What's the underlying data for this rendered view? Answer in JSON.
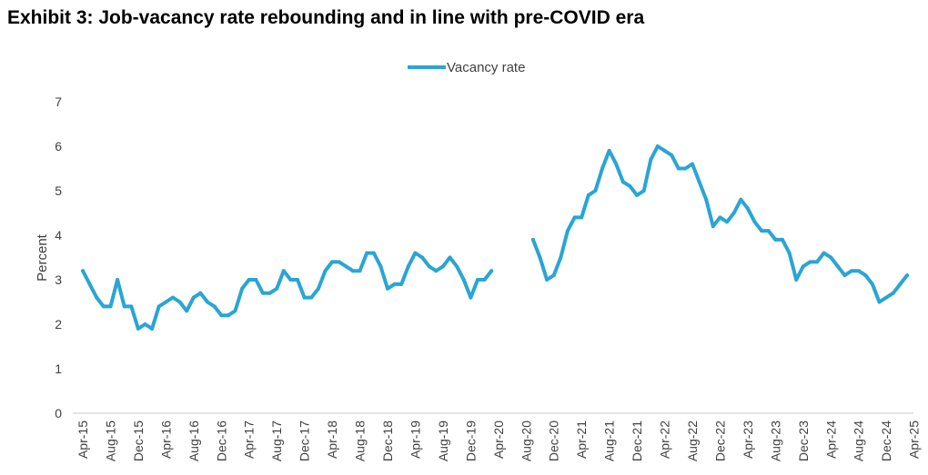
{
  "title": "Exhibit 3: Job-vacancy rate rebounding and in line with pre-COVID era",
  "colors": {
    "series": "#2aa5d4",
    "axis": "#c8c8c8",
    "text": "#404040"
  },
  "chart_data": {
    "type": "line",
    "title": "Exhibit 3: Job-vacancy rate rebounding and in line with pre-COVID era",
    "ylabel": "Percent",
    "xlabel": "",
    "ylim": [
      0,
      7
    ],
    "yticks": [
      0,
      1,
      2,
      3,
      4,
      5,
      6,
      7
    ],
    "grid": false,
    "legend": "top-center",
    "x_tick_labels": [
      "Apr-15",
      "Aug-15",
      "Dec-15",
      "Apr-16",
      "Aug-16",
      "Dec-16",
      "Apr-17",
      "Aug-17",
      "Dec-17",
      "Apr-18",
      "Aug-18",
      "Dec-18",
      "Apr-19",
      "Aug-19",
      "Dec-19",
      "Apr-20",
      "Aug-20",
      "Dec-20",
      "Apr-21",
      "Aug-21",
      "Dec-21",
      "Apr-22",
      "Aug-22",
      "Dec-22",
      "Apr-23",
      "Aug-23",
      "Dec-23",
      "Apr-24",
      "Aug-24",
      "Dec-24",
      "Apr-25"
    ],
    "x_start": "Apr-15",
    "x_end": "Apr-25",
    "series": [
      {
        "name": "Vacancy rate",
        "color": "#2aa5d4",
        "values": [
          3.2,
          2.9,
          2.6,
          2.4,
          2.4,
          3.0,
          2.4,
          2.4,
          1.9,
          2.0,
          1.9,
          2.4,
          2.5,
          2.6,
          2.5,
          2.3,
          2.6,
          2.7,
          2.5,
          2.4,
          2.2,
          2.2,
          2.3,
          2.8,
          3.0,
          3.0,
          2.7,
          2.7,
          2.8,
          3.2,
          3.0,
          3.0,
          2.6,
          2.6,
          2.8,
          3.2,
          3.4,
          3.4,
          3.3,
          3.2,
          3.2,
          3.6,
          3.6,
          3.3,
          2.8,
          2.9,
          2.9,
          3.3,
          3.6,
          3.5,
          3.3,
          3.2,
          3.3,
          3.5,
          3.3,
          3.0,
          2.6,
          3.0,
          3.0,
          3.2,
          null,
          null,
          null,
          null,
          null,
          3.9,
          3.5,
          3.0,
          3.1,
          3.5,
          4.1,
          4.4,
          4.4,
          4.9,
          5.0,
          5.5,
          5.9,
          5.6,
          5.2,
          5.1,
          4.9,
          5.0,
          5.7,
          6.0,
          5.9,
          5.8,
          5.5,
          5.5,
          5.6,
          5.2,
          4.8,
          4.2,
          4.4,
          4.3,
          4.5,
          4.8,
          4.6,
          4.3,
          4.1,
          4.1,
          3.9,
          3.9,
          3.6,
          3.0,
          3.3,
          3.4,
          3.4,
          3.6,
          3.5,
          3.3,
          3.1,
          3.2,
          3.2,
          3.1,
          2.9,
          2.5,
          2.6,
          2.7,
          2.9,
          3.1
        ]
      }
    ]
  }
}
